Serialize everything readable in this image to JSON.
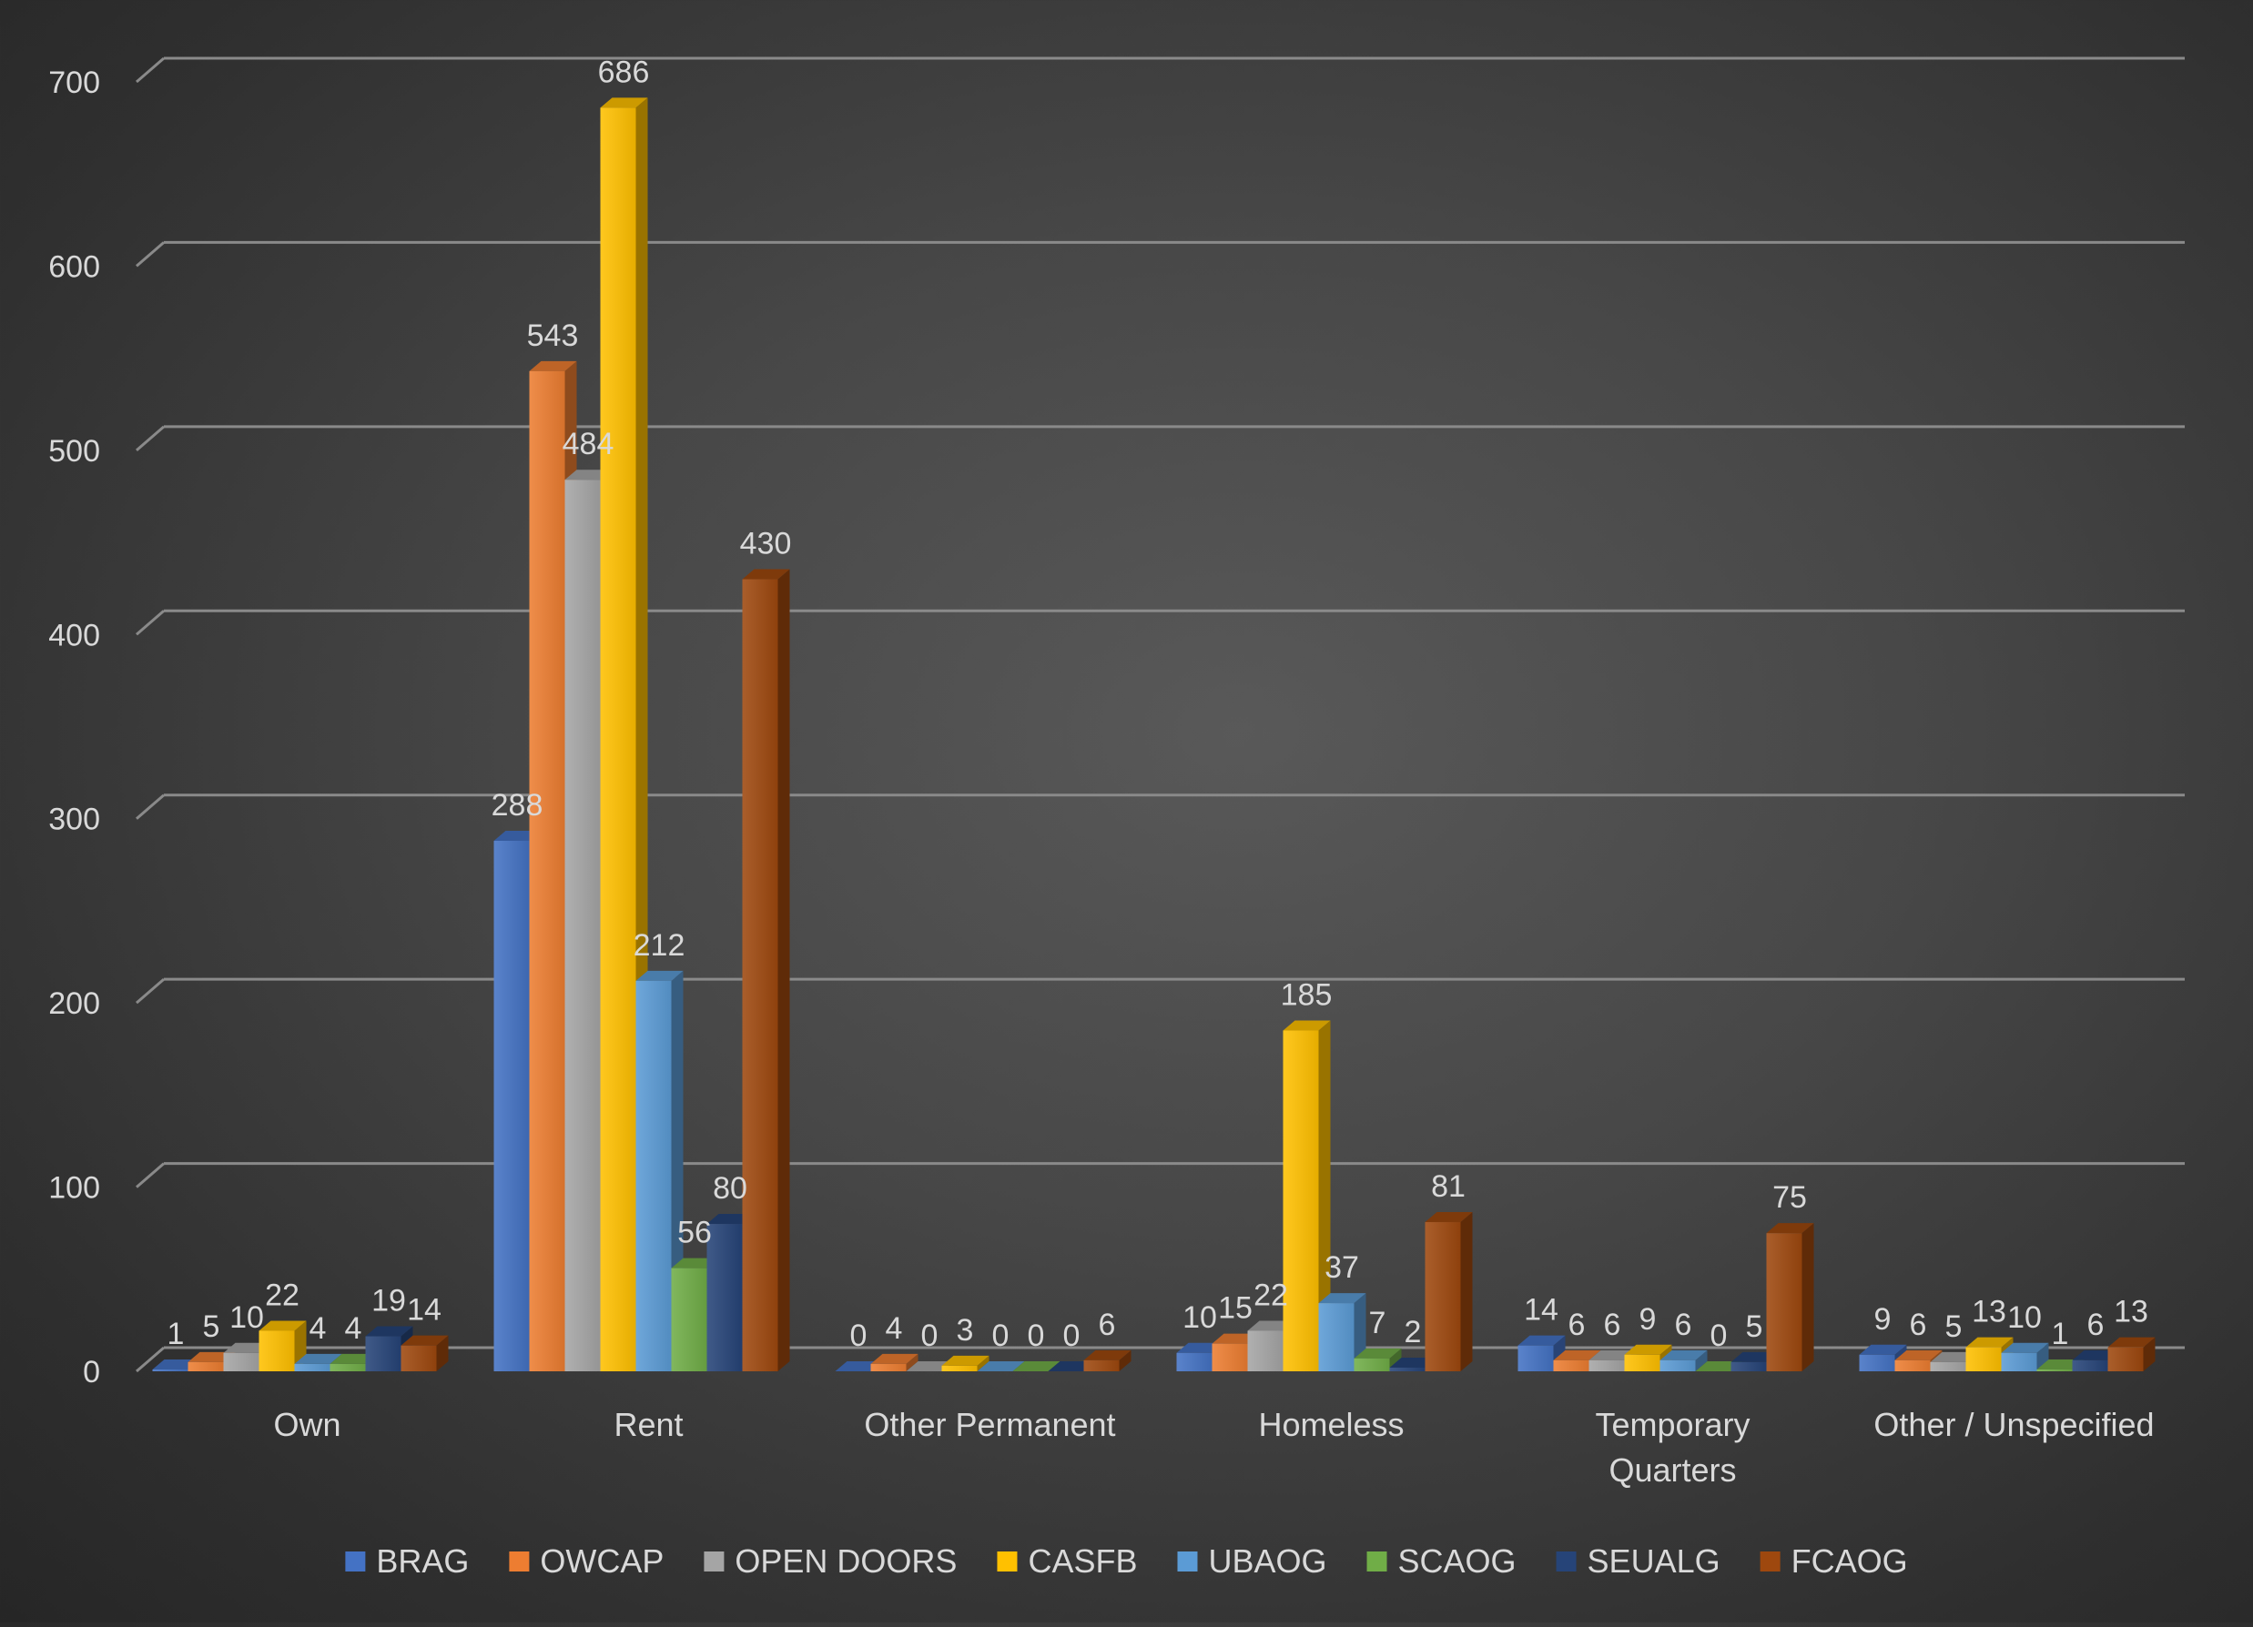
{
  "chart_data": {
    "type": "bar",
    "title": "",
    "xlabel": "",
    "ylabel": "",
    "ylim": [
      0,
      700
    ],
    "yticks": [
      0,
      100,
      200,
      300,
      400,
      500,
      600,
      700
    ],
    "grid": true,
    "legend_position": "bottom",
    "categories": [
      "Own",
      "Rent",
      "Other Permanent",
      "Homeless",
      "Temporary Quarters",
      "Other / Unspecified"
    ],
    "series": [
      {
        "name": "BRAG",
        "color": "#4472c4",
        "values": [
          1,
          288,
          0,
          10,
          14,
          9
        ]
      },
      {
        "name": "OWCAP",
        "color": "#ed7d31",
        "values": [
          5,
          543,
          4,
          15,
          6,
          6
        ]
      },
      {
        "name": "OPEN DOORS",
        "color": "#a5a5a5",
        "values": [
          10,
          484,
          0,
          22,
          6,
          5
        ]
      },
      {
        "name": "CASFB",
        "color": "#ffc000",
        "values": [
          22,
          686,
          3,
          185,
          9,
          13
        ]
      },
      {
        "name": "UBAOG",
        "color": "#5b9bd5",
        "values": [
          4,
          212,
          0,
          37,
          6,
          10
        ]
      },
      {
        "name": "SCAOG",
        "color": "#70ad47",
        "values": [
          4,
          56,
          0,
          7,
          0,
          1
        ]
      },
      {
        "name": "SEUALG",
        "color": "#264478",
        "values": [
          19,
          80,
          0,
          2,
          5,
          6
        ]
      },
      {
        "name": "FCAOG",
        "color": "#9e480e",
        "values": [
          14,
          430,
          6,
          81,
          75,
          13
        ]
      }
    ]
  }
}
